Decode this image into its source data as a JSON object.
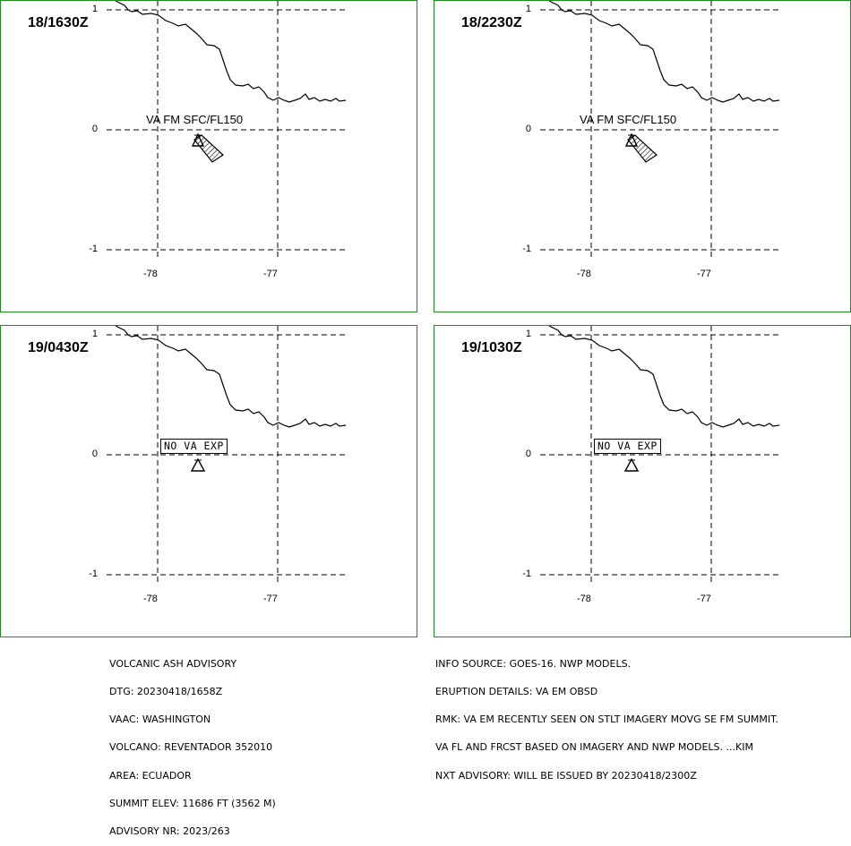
{
  "axis_ticks": {
    "lat": [
      "1",
      "0",
      "-1"
    ],
    "lon": [
      "-78",
      "-77"
    ]
  },
  "panels": [
    {
      "time": "18/1630Z",
      "label": "VA FM SFC/FL150",
      "label_type": "plain",
      "ash_plume": true
    },
    {
      "time": "18/2230Z",
      "label": "VA FM SFC/FL150",
      "label_type": "plain",
      "ash_plume": true
    },
    {
      "time": "19/0430Z",
      "label": "NO VA EXP",
      "label_type": "boxed",
      "ash_plume": false
    },
    {
      "time": "19/1030Z",
      "label": "NO VA EXP",
      "label_type": "boxed",
      "ash_plume": false
    }
  ],
  "advisory_left": [
    "VOLCANIC ASH ADVISORY",
    "DTG: 20230418/1658Z",
    "VAAC: WASHINGTON",
    "VOLCANO: REVENTADOR 352010",
    "AREA: ECUADOR",
    "SUMMIT ELEV: 11686 FT (3562 M)",
    "ADVISORY NR: 2023/263"
  ],
  "advisory_right": [
    "INFO SOURCE: GOES-16. NWP MODELS.",
    "ERUPTION DETAILS: VA EM OBSD",
    "RMK: VA EM RECENTLY SEEN ON STLT IMAGERY MOVG SE FM SUMMIT.",
    "VA FL AND FRCST BASED ON IMAGERY AND NWP MODELS. ...KIM",
    "NXT ADVISORY: WILL BE ISSUED BY 20230418/2300Z"
  ],
  "colors": {
    "frame": "#1f8a1f",
    "lines": "#000000",
    "background": "#ffffff"
  },
  "icons": {
    "volcano": "volcano-triangle-icon",
    "plume": "hatched-ash-plume"
  }
}
